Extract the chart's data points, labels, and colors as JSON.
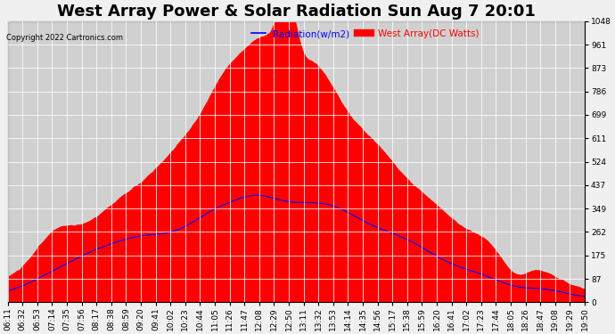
{
  "title": "West Array Power & Solar Radiation Sun Aug 7 20:01",
  "copyright": "Copyright 2022 Cartronics.com",
  "legend_radiation": "Radiation(w/m2)",
  "legend_west": "West Array(DC Watts)",
  "legend_radiation_color": "blue",
  "legend_west_color": "red",
  "ymin": 0.0,
  "ymax": 1047.9,
  "yticks": [
    0.0,
    87.3,
    174.7,
    262.0,
    349.3,
    436.6,
    524.0,
    611.3,
    698.6,
    785.9,
    873.3,
    960.6,
    1047.9
  ],
  "bg_color": "#f0f0f0",
  "plot_bg_color": "#d0d0d0",
  "fill_color": "red",
  "line_color": "blue",
  "grid_color": "white",
  "title_fontsize": 13,
  "tick_fontsize": 6.5
}
